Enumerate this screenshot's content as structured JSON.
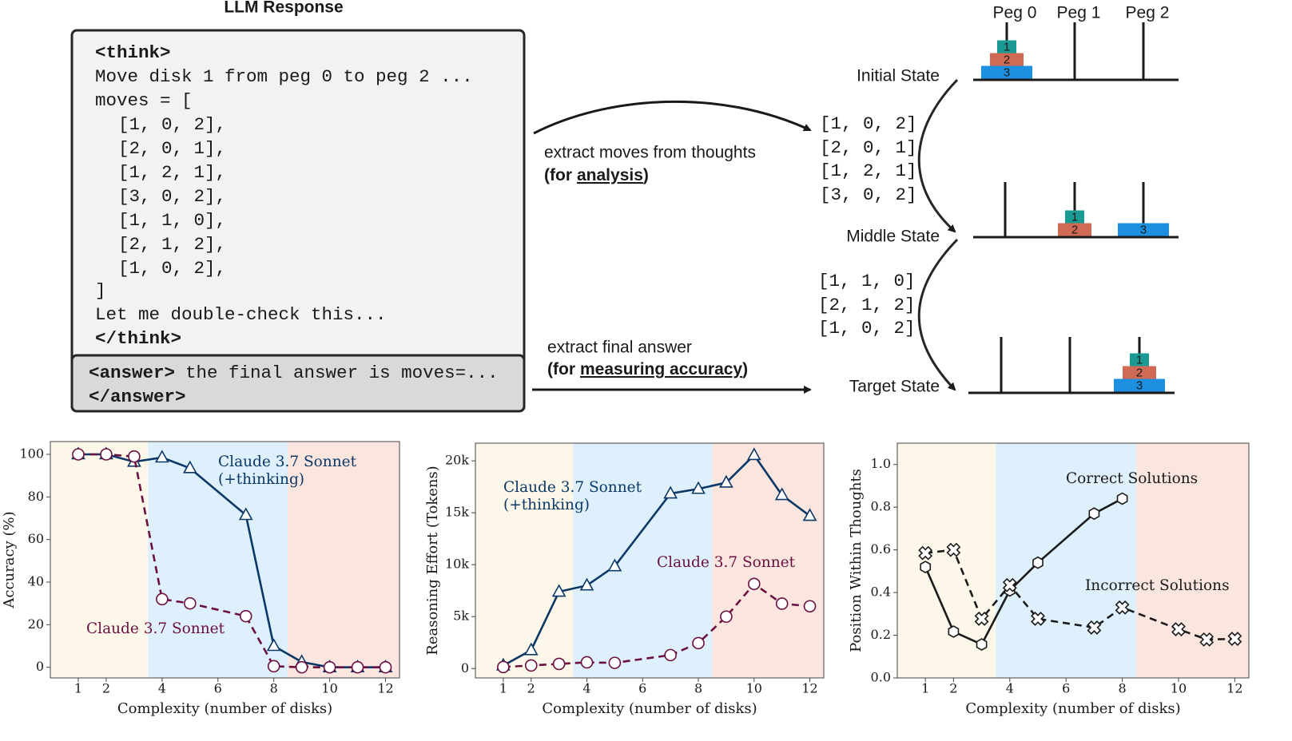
{
  "diagram": {
    "llm_response": {
      "title": "LLM Response",
      "think_open": "<think>",
      "intro": "Move disk 1 from peg 0 to peg 2 ...",
      "moves_open": "moves = [",
      "moves": [
        {
          "text": "[1, 0, 2],",
          "color": "#2e9e44"
        },
        {
          "text": "[2, 0, 1],",
          "color": "#c7306e"
        },
        {
          "text": "[1, 2, 1],",
          "color": "#1f6fd6"
        },
        {
          "text": "[3, 0, 2],",
          "color": "#b5651d"
        },
        {
          "text": "[1, 1, 0],",
          "color": "#1a9bd7"
        },
        {
          "text": "[2, 1, 2],",
          "color": "#9b3fe0"
        },
        {
          "text": "[1, 0, 2],",
          "color": "#b38b00"
        }
      ],
      "moves_close": "]",
      "outro": "Let me double-check this...",
      "think_close": "</think>",
      "answer_open": "<answer>",
      "answer_text": "the final answer is moves=...",
      "answer_close": "</answer>"
    },
    "extract_thoughts": {
      "label": "extract moves from thoughts",
      "note_open": "(for",
      "note_emphasis": "analysis",
      "note_close": ")"
    },
    "extract_answer": {
      "label": "extract final answer",
      "note_open": "(for",
      "note_emphasis": "measuring accuracy",
      "note_close": ")"
    },
    "extracted_moves": [
      [
        {
          "text": "[1, 0, 2]",
          "color": "#2e9e44"
        },
        {
          "text": "[2, 0, 1]",
          "color": "#c7306e"
        },
        {
          "text": "[1, 2, 1]",
          "color": "#1f6fd6"
        },
        {
          "text": "[3, 0, 2]",
          "color": "#b5651d"
        }
      ],
      [
        {
          "text": "[1, 1, 0]",
          "color": "#1a9bd7"
        },
        {
          "text": "[2, 1, 2]",
          "color": "#9b3fe0"
        },
        {
          "text": "[1, 0, 2]",
          "color": "#b38b00"
        }
      ]
    ],
    "peg_labels": [
      "Peg 0",
      "Peg 1",
      "Peg 2"
    ],
    "disks": [
      {
        "label": "1",
        "color": "#1a9a92"
      },
      {
        "label": "2",
        "color": "#d06a55"
      },
      {
        "label": "3",
        "color": "#1d8fe1"
      }
    ],
    "states": [
      {
        "name": "Initial State",
        "pegs": [
          [
            "1",
            "2",
            "3"
          ],
          [],
          []
        ]
      },
      {
        "name": "Middle State",
        "pegs": [
          [],
          [
            "1",
            "2"
          ],
          [
            "3"
          ]
        ]
      },
      {
        "name": "Target State",
        "pegs": [
          [],
          [],
          [
            "1",
            "2",
            "3"
          ]
        ]
      }
    ]
  },
  "chart_data": [
    {
      "type": "line",
      "xlabel": "Complexity (number of disks)",
      "ylabel": "Accuracy (%)",
      "xlim": [
        0,
        12.5
      ],
      "ylim": [
        -5,
        106
      ],
      "xticks": [
        1,
        2,
        4,
        6,
        8,
        10,
        12
      ],
      "yticks": [
        0,
        20,
        40,
        60,
        80,
        100
      ],
      "regions": [
        {
          "x": [
            0,
            3.5
          ],
          "color": "#fcf7e8"
        },
        {
          "x": [
            3.5,
            8.5
          ],
          "color": "#ddf0fc"
        },
        {
          "x": [
            8.5,
            12.5
          ],
          "color": "#fbe5df"
        }
      ],
      "series": [
        {
          "name": "Claude 3.7 Sonnet\n(+thinking)",
          "color": "#0b3866",
          "marker": "triangle",
          "dashed": false,
          "x": [
            1,
            2,
            3,
            4,
            5,
            7,
            8,
            9,
            10,
            11,
            12
          ],
          "values": [
            100,
            100,
            96.5,
            98.5,
            93.5,
            71.5,
            10,
            2.5,
            0,
            0,
            0
          ]
        },
        {
          "name": "Claude 3.7 Sonnet",
          "color": "#6b1040",
          "marker": "circle",
          "dashed": true,
          "x": [
            1,
            2,
            3,
            4,
            5,
            7,
            8,
            9,
            10,
            11,
            12
          ],
          "values": [
            100,
            100,
            99,
            32,
            30,
            24,
            0.5,
            0,
            0,
            0,
            0
          ]
        }
      ]
    },
    {
      "type": "line",
      "xlabel": "Complexity (number of disks)",
      "ylabel": "Reasoning Effort (Tokens)",
      "xlim": [
        0,
        12.5
      ],
      "ylim": [
        -900,
        21700
      ],
      "xticks": [
        1,
        2,
        4,
        6,
        8,
        10,
        12
      ],
      "yticks": [
        0,
        {
          "value": 5000,
          "label": "5k"
        },
        {
          "value": 10000,
          "label": "10k"
        },
        {
          "value": 15000,
          "label": "15k"
        },
        {
          "value": 20000,
          "label": "20k"
        }
      ],
      "regions": [
        {
          "x": [
            0,
            3.5
          ],
          "color": "#fcf7e8"
        },
        {
          "x": [
            3.5,
            8.5
          ],
          "color": "#ddf0fc"
        },
        {
          "x": [
            8.5,
            12.5
          ],
          "color": "#fbe5df"
        }
      ],
      "series": [
        {
          "name": "Claude 3.7 Sonnet\n(+thinking)",
          "color": "#0b3866",
          "marker": "triangle",
          "dashed": false,
          "x": [
            1,
            2,
            3,
            4,
            5,
            7,
            8,
            9,
            10,
            11,
            12
          ],
          "values": [
            300,
            1770,
            7400,
            8000,
            9850,
            16850,
            17300,
            17900,
            20550,
            16700,
            14700
          ]
        },
        {
          "name": "Claude 3.7 Sonnet",
          "color": "#6b1040",
          "marker": "circle",
          "dashed": true,
          "x": [
            1,
            2,
            3,
            4,
            5,
            7,
            8,
            9,
            10,
            11,
            12
          ],
          "values": [
            150,
            300,
            450,
            600,
            550,
            1300,
            2450,
            5000,
            8150,
            6250,
            6000
          ]
        }
      ]
    },
    {
      "type": "line",
      "xlabel": "Complexity (number of disks)",
      "ylabel": "Position Within Thoughts",
      "xlim": [
        0,
        12.5
      ],
      "ylim": [
        0,
        1.1
      ],
      "xticks": [
        1,
        2,
        4,
        6,
        8,
        10,
        12
      ],
      "yticks": [
        {
          "value": 0,
          "label": "0.0"
        },
        0.2,
        0.4,
        0.6,
        0.8,
        {
          "value": 1,
          "label": "1.0"
        }
      ],
      "regions": [
        {
          "x": [
            0,
            3.5
          ],
          "color": "#fcf7e8"
        },
        {
          "x": [
            3.5,
            8.5
          ],
          "color": "#ddf0fc"
        },
        {
          "x": [
            8.5,
            12.5
          ],
          "color": "#fbe5df"
        }
      ],
      "series": [
        {
          "name": "Correct Solutions",
          "color": "#1a1a1a",
          "marker": "hexagon",
          "dashed": false,
          "x": [
            1,
            2,
            3,
            4,
            5,
            7,
            8
          ],
          "values": [
            0.52,
            0.217,
            0.157,
            0.41,
            0.54,
            0.77,
            0.84
          ]
        },
        {
          "name": "Incorrect Solutions",
          "color": "#1a1a1a",
          "marker": "x",
          "dashed": true,
          "x": [
            1,
            2,
            3,
            4,
            5,
            7,
            8,
            10,
            11,
            12
          ],
          "values": [
            0.585,
            0.6,
            0.277,
            0.435,
            0.277,
            0.236,
            0.33,
            0.228,
            0.18,
            0.183
          ]
        }
      ]
    }
  ]
}
